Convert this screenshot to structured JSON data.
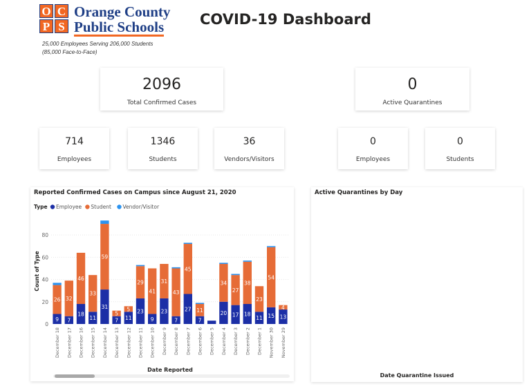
{
  "header": {
    "logo_letters": [
      "O",
      "C",
      "P",
      "S"
    ],
    "logo_line1": "Orange County",
    "logo_line2": "Public Schools",
    "tagline_line1": "25,000 Employees Serving 206,000 Students",
    "tagline_line2": "(85,000 Face-to-Face)",
    "title": "COVID-19 Dashboard"
  },
  "cards": {
    "total_cases": {
      "value": "2096",
      "label": "Total Confirmed Cases"
    },
    "active_quarantines": {
      "value": "0",
      "label": "Active Quarantines"
    },
    "employees": {
      "value": "714",
      "label": "Employees"
    },
    "students": {
      "value": "1346",
      "label": "Students"
    },
    "vendors": {
      "value": "36",
      "label": "Vendors/Visitors"
    },
    "q_employees": {
      "value": "0",
      "label": "Employees"
    },
    "q_students": {
      "value": "0",
      "label": "Students"
    }
  },
  "quarantine_panel": {
    "title": "Active Quarantines by Day",
    "xlabel": "Date Quarantine Issued"
  },
  "colors": {
    "employee": "#1c2fa6",
    "student": "#e66c37",
    "vendor": "#2b93f0"
  },
  "chart_data": {
    "type": "bar",
    "stacked": true,
    "title": "Reported Confirmed Cases on Campus since August 21, 2020",
    "legend_title": "Type",
    "legend_position": "top-left",
    "xlabel": "Date Reported",
    "ylabel": "Count of Type",
    "ylim": [
      0,
      95
    ],
    "yticks": [
      0,
      20,
      40,
      60,
      80
    ],
    "grid": true,
    "categories": [
      "December 18",
      "December 17",
      "December 16",
      "December 15",
      "December 14",
      "December 13",
      "December 12",
      "December 11",
      "December 10",
      "December 9",
      "December 8",
      "December 7",
      "December 6",
      "December 5",
      "December 4",
      "December 3",
      "December 2",
      "December 1",
      "November 30",
      "November 29"
    ],
    "series": [
      {
        "name": "Employee",
        "values": [
          9,
          7,
          18,
          11,
          31,
          7,
          11,
          23,
          9,
          23,
          7,
          27,
          7,
          3,
          20,
          17,
          18,
          11,
          15,
          13
        ]
      },
      {
        "name": "Student",
        "values": [
          26,
          32,
          46,
          33,
          59,
          5,
          5,
          29,
          41,
          31,
          43,
          45,
          11,
          0,
          34,
          27,
          38,
          23,
          54,
          4
        ]
      },
      {
        "name": "Vendor/Visitor",
        "values": [
          2,
          0,
          0,
          0,
          3,
          0,
          0,
          1,
          0,
          0,
          1,
          1,
          1,
          0,
          1,
          1,
          1,
          0,
          1,
          0
        ]
      }
    ]
  }
}
